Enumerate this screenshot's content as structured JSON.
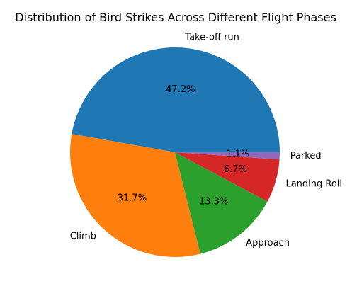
{
  "title": "Distribution of Bird Strikes Across Different Flight Phases",
  "chart_data": {
    "type": "pie",
    "title": "Distribution of Bird Strikes Across Different Flight Phases",
    "start_angle_deg": 0,
    "direction": "counterclockwise",
    "slices": [
      {
        "label": "Take-off run",
        "value": 47.2,
        "pct_label": "47.2%",
        "color": "#1f77b4"
      },
      {
        "label": "Climb",
        "value": 31.7,
        "pct_label": "31.7%",
        "color": "#ff7f0e"
      },
      {
        "label": "Approach",
        "value": 13.3,
        "pct_label": "13.3%",
        "color": "#2ca02c"
      },
      {
        "label": "Landing Roll",
        "value": 6.7,
        "pct_label": "6.7%",
        "color": "#d62728"
      },
      {
        "label": "Parked",
        "value": 1.1,
        "pct_label": "1.1%",
        "color": "#9467bd"
      }
    ]
  }
}
